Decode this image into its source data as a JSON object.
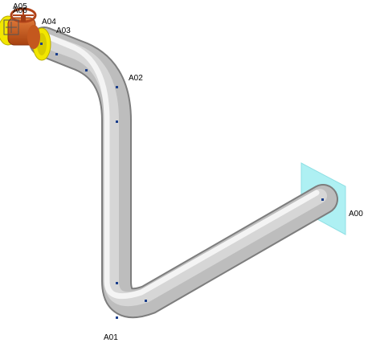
{
  "viewport": {
    "labels": {
      "a00": "A00",
      "a01": "A01",
      "a02": "A02",
      "a03": "A03",
      "a04": "A04",
      "a05": "A05",
      "a06": "A06"
    }
  },
  "colors": {
    "background": "#ffffff",
    "pipe_dark": "#8f8f8f",
    "pipe_light": "#e9e9e9",
    "wall": "#aef0f3",
    "flange": "#f2e600",
    "valve_body": "#c8561b",
    "handwheel": "#b2441a",
    "node_dot": "#1a3e8c"
  }
}
